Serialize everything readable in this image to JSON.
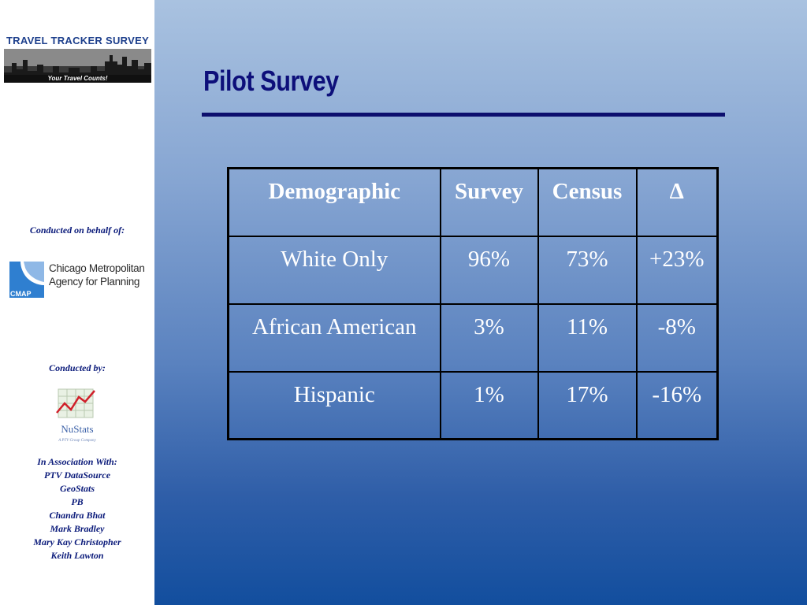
{
  "sidebar": {
    "logo": {
      "title": "TRAVEL TRACKER SURVEY",
      "tagline": "Your Travel Counts!"
    },
    "behalf_label": "Conducted on behalf of:",
    "cmap": {
      "mark": "CMAP",
      "name_line1": "Chicago Metropolitan",
      "name_line2": "Agency for Planning"
    },
    "conducted_by_label": "Conducted by:",
    "nustats": {
      "name": "NuStats",
      "subtitle": "A PTV Group Company"
    },
    "association": [
      "In Association With:",
      "PTV DataSource",
      "GeoStats",
      "PB",
      "Chandra Bhat",
      "Mark Bradley",
      "Mary Kay Christopher",
      "Keith Lawton"
    ]
  },
  "main": {
    "title": "Pilot Survey",
    "table": {
      "headers": [
        "Demographic",
        "Survey",
        "Census",
        "Δ"
      ],
      "rows": [
        [
          "White Only",
          "96%",
          "73%",
          "+23%"
        ],
        [
          "African American",
          "3%",
          "11%",
          "-8%"
        ],
        [
          "Hispanic",
          "1%",
          "17%",
          "-16%"
        ]
      ]
    }
  },
  "colors": {
    "title": "#0d0f7a",
    "rule": "#0d0f6e",
    "gradient_top": "#a9c2e0",
    "gradient_bottom": "#124e9e",
    "sidebar_text": "#0a1a7a"
  }
}
